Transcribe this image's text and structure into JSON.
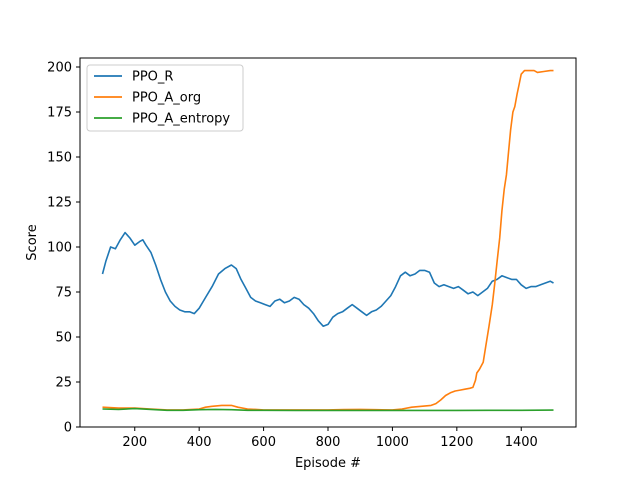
{
  "chart_data": {
    "type": "line",
    "title": "",
    "xlabel": "Episode #",
    "ylabel": "Score",
    "xlim": [
      30,
      1570
    ],
    "ylim": [
      0,
      205
    ],
    "xticks": [
      200,
      400,
      600,
      800,
      1000,
      1200,
      1400
    ],
    "yticks": [
      0,
      25,
      50,
      75,
      100,
      125,
      150,
      175,
      200
    ],
    "grid": false,
    "legend_position": "upper-left",
    "series": [
      {
        "name": "PPO_R",
        "color": "#1f77b4",
        "points": [
          [
            100,
            85
          ],
          [
            110,
            92
          ],
          [
            125,
            100
          ],
          [
            140,
            99
          ],
          [
            155,
            104
          ],
          [
            170,
            108
          ],
          [
            185,
            105
          ],
          [
            200,
            101
          ],
          [
            215,
            103
          ],
          [
            225,
            104
          ],
          [
            235,
            101
          ],
          [
            250,
            97
          ],
          [
            265,
            90
          ],
          [
            280,
            82
          ],
          [
            295,
            75
          ],
          [
            310,
            70
          ],
          [
            325,
            67
          ],
          [
            340,
            65
          ],
          [
            355,
            64
          ],
          [
            370,
            64
          ],
          [
            385,
            63
          ],
          [
            400,
            66
          ],
          [
            420,
            72
          ],
          [
            440,
            78
          ],
          [
            460,
            85
          ],
          [
            480,
            88
          ],
          [
            500,
            90
          ],
          [
            515,
            88
          ],
          [
            530,
            82
          ],
          [
            545,
            77
          ],
          [
            560,
            72
          ],
          [
            575,
            70
          ],
          [
            590,
            69
          ],
          [
            605,
            68
          ],
          [
            620,
            67
          ],
          [
            635,
            70
          ],
          [
            650,
            71
          ],
          [
            665,
            69
          ],
          [
            680,
            70
          ],
          [
            695,
            72
          ],
          [
            710,
            71
          ],
          [
            725,
            68
          ],
          [
            740,
            66
          ],
          [
            755,
            63
          ],
          [
            770,
            59
          ],
          [
            785,
            56
          ],
          [
            800,
            57
          ],
          [
            815,
            61
          ],
          [
            830,
            63
          ],
          [
            845,
            64
          ],
          [
            860,
            66
          ],
          [
            875,
            68
          ],
          [
            890,
            66
          ],
          [
            905,
            64
          ],
          [
            920,
            62
          ],
          [
            935,
            64
          ],
          [
            950,
            65
          ],
          [
            965,
            67
          ],
          [
            980,
            70
          ],
          [
            995,
            73
          ],
          [
            1010,
            78
          ],
          [
            1025,
            84
          ],
          [
            1040,
            86
          ],
          [
            1055,
            84
          ],
          [
            1070,
            85
          ],
          [
            1085,
            87
          ],
          [
            1100,
            87
          ],
          [
            1115,
            86
          ],
          [
            1130,
            80
          ],
          [
            1145,
            78
          ],
          [
            1160,
            79
          ],
          [
            1175,
            78
          ],
          [
            1190,
            77
          ],
          [
            1205,
            78
          ],
          [
            1220,
            76
          ],
          [
            1235,
            74
          ],
          [
            1250,
            75
          ],
          [
            1265,
            73
          ],
          [
            1280,
            75
          ],
          [
            1295,
            77
          ],
          [
            1310,
            81
          ],
          [
            1325,
            82
          ],
          [
            1340,
            84
          ],
          [
            1355,
            83
          ],
          [
            1370,
            82
          ],
          [
            1385,
            82
          ],
          [
            1400,
            79
          ],
          [
            1415,
            77
          ],
          [
            1430,
            78
          ],
          [
            1445,
            78
          ],
          [
            1460,
            79
          ],
          [
            1475,
            80
          ],
          [
            1490,
            81
          ],
          [
            1500,
            80
          ]
        ]
      },
      {
        "name": "PPO_A_org",
        "color": "#ff7f0e",
        "points": [
          [
            100,
            11
          ],
          [
            150,
            10.5
          ],
          [
            200,
            10.5
          ],
          [
            250,
            10
          ],
          [
            300,
            9.5
          ],
          [
            350,
            9.5
          ],
          [
            400,
            10
          ],
          [
            420,
            11
          ],
          [
            440,
            11.5
          ],
          [
            470,
            12
          ],
          [
            500,
            12
          ],
          [
            520,
            11
          ],
          [
            550,
            10
          ],
          [
            600,
            9.5
          ],
          [
            700,
            9.5
          ],
          [
            800,
            9.5
          ],
          [
            850,
            9.7
          ],
          [
            900,
            9.8
          ],
          [
            950,
            9.6
          ],
          [
            1000,
            9.5
          ],
          [
            1030,
            10
          ],
          [
            1060,
            11
          ],
          [
            1090,
            11.5
          ],
          [
            1120,
            12
          ],
          [
            1135,
            13
          ],
          [
            1150,
            15
          ],
          [
            1165,
            17.5
          ],
          [
            1180,
            19
          ],
          [
            1195,
            20
          ],
          [
            1210,
            20.5
          ],
          [
            1225,
            21
          ],
          [
            1240,
            21.5
          ],
          [
            1250,
            22
          ],
          [
            1258,
            26
          ],
          [
            1262,
            30
          ],
          [
            1270,
            32
          ],
          [
            1282,
            36
          ],
          [
            1290,
            45
          ],
          [
            1300,
            56
          ],
          [
            1310,
            68
          ],
          [
            1318,
            80
          ],
          [
            1325,
            92
          ],
          [
            1333,
            105
          ],
          [
            1340,
            120
          ],
          [
            1347,
            132
          ],
          [
            1354,
            140
          ],
          [
            1360,
            152
          ],
          [
            1367,
            165
          ],
          [
            1374,
            175
          ],
          [
            1380,
            178
          ],
          [
            1387,
            185
          ],
          [
            1393,
            190
          ],
          [
            1400,
            196
          ],
          [
            1410,
            198
          ],
          [
            1420,
            198
          ],
          [
            1440,
            198
          ],
          [
            1450,
            197
          ],
          [
            1470,
            197.5
          ],
          [
            1490,
            198
          ],
          [
            1500,
            198
          ]
        ]
      },
      {
        "name": "PPO_A_entropy",
        "color": "#2ca02c",
        "points": [
          [
            100,
            10
          ],
          [
            150,
            9.8
          ],
          [
            200,
            10.2
          ],
          [
            250,
            9.8
          ],
          [
            300,
            9.3
          ],
          [
            350,
            9.3
          ],
          [
            400,
            9.6
          ],
          [
            450,
            9.8
          ],
          [
            500,
            9.6
          ],
          [
            550,
            9.3
          ],
          [
            600,
            9.3
          ],
          [
            700,
            9.2
          ],
          [
            800,
            9.2
          ],
          [
            900,
            9.2
          ],
          [
            1000,
            9.2
          ],
          [
            1100,
            9.2
          ],
          [
            1200,
            9.2
          ],
          [
            1300,
            9.3
          ],
          [
            1400,
            9.3
          ],
          [
            1500,
            9.4
          ]
        ]
      }
    ]
  }
}
